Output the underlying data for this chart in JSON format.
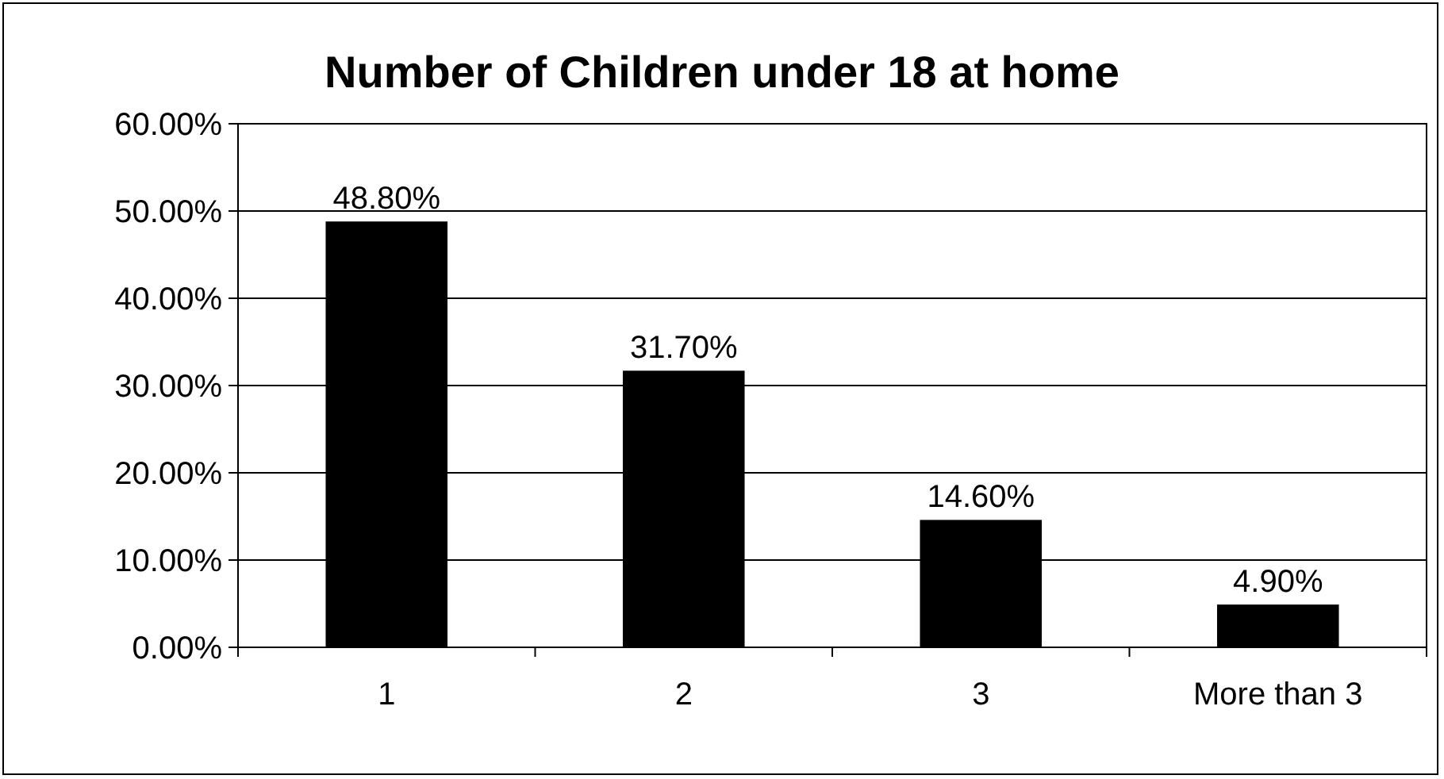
{
  "chart_data": {
    "type": "bar",
    "title": "Number of Children under 18 at home",
    "categories": [
      "1",
      "2",
      "3",
      "More than 3"
    ],
    "values": [
      48.8,
      31.7,
      14.6,
      4.9
    ],
    "value_labels": [
      "48.80%",
      "31.70%",
      "14.60%",
      "4.90%"
    ],
    "color": "#000000",
    "ylim": [
      0,
      60
    ],
    "yticks": [
      {
        "value": 0,
        "label": "0.00%"
      },
      {
        "value": 10,
        "label": "10.00%"
      },
      {
        "value": 20,
        "label": "20.00%"
      },
      {
        "value": 30,
        "label": "30.00%"
      },
      {
        "value": 40,
        "label": "40.00%"
      },
      {
        "value": 50,
        "label": "50.00%"
      },
      {
        "value": 60,
        "label": "60.00%"
      }
    ],
    "grid": "y"
  }
}
